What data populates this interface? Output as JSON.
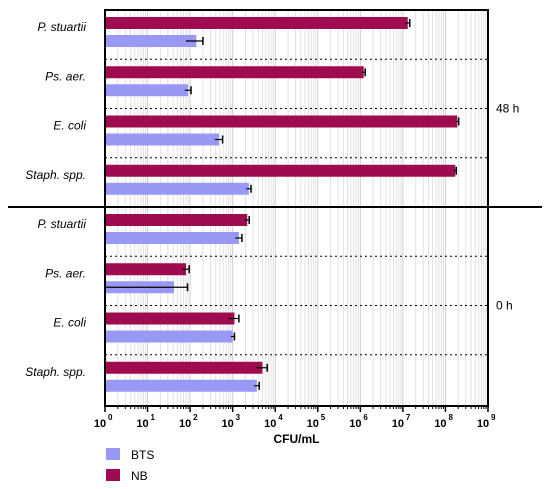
{
  "chart_data": {
    "type": "bar",
    "orientation": "horizontal",
    "x_scale": "log",
    "xlim": [
      1,
      1000000000
    ],
    "xlabel": "CFU/mL",
    "x_ticks": [
      {
        "base": "10",
        "exp": "0"
      },
      {
        "base": "10",
        "exp": "1"
      },
      {
        "base": "10",
        "exp": "2"
      },
      {
        "base": "10",
        "exp": "3"
      },
      {
        "base": "10",
        "exp": "4"
      },
      {
        "base": "10",
        "exp": "5"
      },
      {
        "base": "10",
        "exp": "6"
      },
      {
        "base": "10",
        "exp": "7"
      },
      {
        "base": "10",
        "exp": "8"
      },
      {
        "base": "10",
        "exp": "9"
      }
    ],
    "grid": "vertical minor lines",
    "legend_position": "bottom-left",
    "series": [
      {
        "name": "BTS",
        "color": "#9999f5"
      },
      {
        "name": "NB",
        "color": "#9e0b4f"
      }
    ],
    "panels": [
      {
        "label": "48 h",
        "groups": [
          {
            "category": "P. stuartii",
            "NB": 13000000,
            "NB_err": 1500000,
            "BTS": 140,
            "BTS_err": 60
          },
          {
            "category": "Ps. aer.",
            "NB": 1200000,
            "NB_err": 100000,
            "BTS": 90,
            "BTS_err": 15
          },
          {
            "category": "E. coli",
            "NB": 190000000,
            "NB_err": 15000000,
            "BTS": 480,
            "BTS_err": 100
          },
          {
            "category": "Staph. spp.",
            "NB": 170000000,
            "NB_err": 10000000,
            "BTS": 2400,
            "BTS_err": 300
          }
        ]
      },
      {
        "label": "0 h",
        "groups": [
          {
            "category": "P. stuartii",
            "NB": 2200,
            "NB_err": 250,
            "BTS": 1400,
            "BTS_err": 250
          },
          {
            "category": "Ps. aer.",
            "NB": 80,
            "NB_err": 15,
            "BTS": 42,
            "BTS_err": 45
          },
          {
            "category": "E. coli",
            "NB": 1100,
            "NB_err": 300,
            "BTS": 1000,
            "BTS_err": 100
          },
          {
            "category": "Staph. spp.",
            "NB": 5000,
            "NB_err": 1500,
            "BTS": 3700,
            "BTS_err": 500
          }
        ]
      }
    ]
  }
}
